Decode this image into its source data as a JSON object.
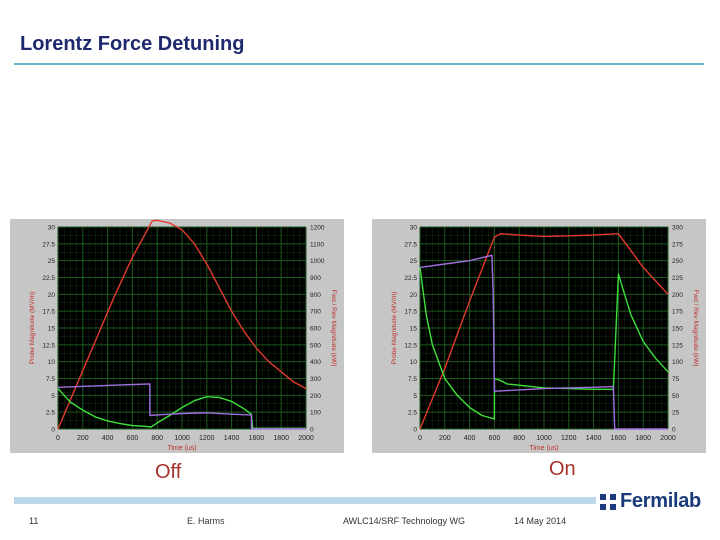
{
  "slide": {
    "title": "Lorentz Force Detuning",
    "captions": {
      "left": "Off",
      "right": "On"
    },
    "footer": {
      "page": "11",
      "author": "E. Harms",
      "event": "AWLC14/SRF Technology WG",
      "date": "14 May 2014"
    },
    "logo": {
      "text": "Fermilab",
      "icon": "fermilab-logo-icon",
      "color": "#1a3b7a"
    }
  },
  "colors": {
    "plot_bg": "#000000",
    "grid": "#1e5a1e",
    "frame": "#c6c6c6",
    "red": "#e23a2e",
    "green": "#3ee03a",
    "purple": "#a070e0",
    "axis_text": "#e0a020",
    "axis_label": "#c0302a"
  },
  "chart_data": [
    {
      "type": "line",
      "xlabel": "Time (us)",
      "ylabel_left": "Probe Magnitude (MV/m)",
      "ylabel_right": "Fwd / Rev Magnitude (kW)",
      "xlim": [
        0,
        2000
      ],
      "ylim_left": [
        0,
        30
      ],
      "ylim_right": [
        0,
        1200
      ],
      "x_ticks": [
        "0",
        "200",
        "400",
        "600",
        "800",
        "1000",
        "1200",
        "1400",
        "1600",
        "1800",
        "2000"
      ],
      "y_ticks_left": [
        "0",
        "2.5",
        "5",
        "7.5",
        "10",
        "12.5",
        "15",
        "17.5",
        "20",
        "22.5",
        "25",
        "27.5",
        "30"
      ],
      "y_ticks_right": [
        "0",
        "100",
        "200",
        "300",
        "400",
        "500",
        "600",
        "700",
        "800",
        "900",
        "1000",
        "1100",
        "1200"
      ],
      "series": [
        {
          "color": "red",
          "x": [
            0,
            150,
            300,
            450,
            600,
            760,
            800,
            900,
            1000,
            1100,
            1200,
            1300,
            1400,
            1500,
            1600,
            1700,
            1800,
            1900,
            2000
          ],
          "y": [
            0,
            6.5,
            13,
            19.5,
            25.5,
            30.9,
            31,
            30.6,
            29.6,
            27.5,
            24.5,
            21,
            17.5,
            14.5,
            12,
            10,
            8.5,
            7,
            6
          ]
        },
        {
          "color": "green",
          "x": [
            0,
            50,
            100,
            200,
            300,
            400,
            500,
            600,
            700,
            750,
            760,
            800,
            900,
            1000,
            1100,
            1200,
            1300,
            1400,
            1500,
            1560,
            1570,
            1600,
            1700,
            1800,
            1900,
            2000
          ],
          "y": [
            6,
            5,
            4,
            2.8,
            1.8,
            1.2,
            0.8,
            0.5,
            0.4,
            0.3,
            0.4,
            0.9,
            2,
            3.2,
            4.2,
            4.8,
            4.7,
            4.1,
            3,
            2.2,
            0.1,
            0.1,
            0.1,
            0.1,
            0.1,
            0.1
          ]
        },
        {
          "color": "purple",
          "x": [
            0,
            740,
            741,
            800,
            900,
            1000,
            1200,
            1400,
            1560,
            1561,
            2000
          ],
          "y": [
            6.2,
            6.7,
            2,
            2.1,
            2.2,
            2.3,
            2.4,
            2.2,
            2.1,
            0,
            0
          ]
        }
      ]
    },
    {
      "type": "line",
      "xlabel": "Time (us)",
      "ylabel_left": "Probe Magnitude (MV/m)",
      "ylabel_right": "Fwd / Rev Magnitude (kW)",
      "xlim": [
        0,
        2000
      ],
      "ylim_left": [
        0,
        30
      ],
      "ylim_right": [
        0,
        300
      ],
      "x_ticks": [
        "0",
        "200",
        "400",
        "600",
        "800",
        "1000",
        "1200",
        "1400",
        "1600",
        "1800",
        "2000"
      ],
      "y_ticks_left": [
        "0",
        "2.5",
        "5",
        "7.5",
        "10",
        "12.5",
        "15",
        "17.5",
        "20",
        "22.5",
        "25",
        "27.5",
        "30"
      ],
      "y_ticks_right": [
        "0",
        "25",
        "50",
        "75",
        "100",
        "125",
        "150",
        "175",
        "200",
        "225",
        "250",
        "275",
        "300"
      ],
      "series": [
        {
          "color": "red",
          "x": [
            0,
            200,
            400,
            600,
            650,
            800,
            1000,
            1200,
            1400,
            1600,
            1800,
            1900,
            2000
          ],
          "y": [
            0,
            9,
            19,
            28.5,
            29,
            28.8,
            28.6,
            28.7,
            28.8,
            29,
            24,
            22,
            20
          ]
        },
        {
          "color": "green",
          "x": [
            0,
            50,
            100,
            200,
            300,
            400,
            500,
            600,
            601,
            650,
            700,
            800,
            1000,
            1200,
            1400,
            1560,
            1600,
            1650,
            1700,
            1800,
            1900,
            2000
          ],
          "y": [
            24,
            17,
            12.5,
            7.5,
            5,
            3.2,
            2,
            1.5,
            7.5,
            7.2,
            6.7,
            6.5,
            6.1,
            6,
            5.9,
            5.9,
            23,
            20,
            17,
            13,
            10.5,
            8.5
          ]
        },
        {
          "color": "purple",
          "x": [
            0,
            200,
            400,
            580,
            590,
            600,
            700,
            800,
            1000,
            1200,
            1400,
            1560,
            1570,
            2000
          ],
          "y": [
            24,
            24.5,
            25,
            25.8,
            20,
            5.6,
            5.7,
            5.8,
            6,
            6.1,
            6.2,
            6.3,
            0,
            0
          ]
        }
      ]
    }
  ]
}
